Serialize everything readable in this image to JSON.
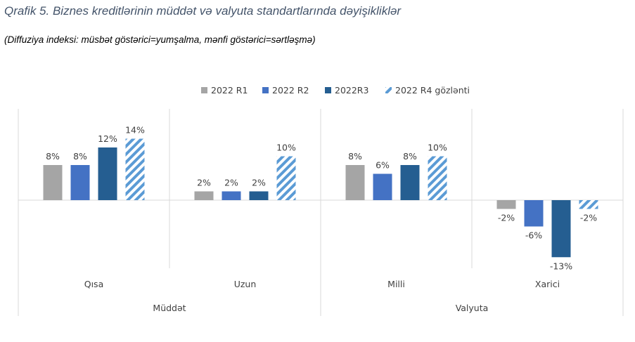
{
  "title": "Qrafik 5. Biznes kreditlərinin müddət və valyuta standartlarında dəyişikliklər",
  "subtitle": "(Diffuziya indeksi: müsbət göstərici=yumşalma, mənfi göstərici=sərtləşmə)",
  "chart_data": {
    "type": "bar",
    "title": "Qrafik 5. Biznes kreditlərinin müddət və valyuta standartlarında dəyişikliklər",
    "subtitle": "(Diffuziya indeksi: müsbət göstərici=yumşalma, mənfi göstərici=sərtləşmə)",
    "xlabel": "",
    "ylabel": "",
    "ylim": [
      -15,
      15
    ],
    "grid": false,
    "legend_position": "top",
    "categories": [
      "Qısa",
      "Uzun",
      "Milli",
      "Xarici"
    ],
    "groups": [
      {
        "label": "Müddət",
        "categories": [
          "Qısa",
          "Uzun"
        ]
      },
      {
        "label": "Valyuta",
        "categories": [
          "Milli",
          "Xarici"
        ]
      }
    ],
    "series": [
      {
        "name": "2022 R1",
        "color": "#a5a5a5",
        "pattern": "solid",
        "values": [
          8,
          2,
          8,
          -2
        ],
        "labels": [
          "8%",
          "2%",
          "8%",
          "-2%"
        ]
      },
      {
        "name": "2022 R2",
        "color": "#4472c4",
        "pattern": "solid",
        "values": [
          8,
          2,
          6,
          -6
        ],
        "labels": [
          "8%",
          "2%",
          "6%",
          "-6%"
        ]
      },
      {
        "name": "2022R3",
        "color": "#255e91",
        "pattern": "solid",
        "values": [
          12,
          2,
          8,
          -13
        ],
        "labels": [
          "12%",
          "2%",
          "8%",
          "-13%"
        ]
      },
      {
        "name": "2022 R4 gözlənti",
        "color": "#5b9bd5",
        "pattern": "diagonal-stripes",
        "values": [
          14,
          10,
          10,
          -2
        ],
        "labels": [
          "14%",
          "10%",
          "10%",
          "-2%"
        ]
      }
    ]
  }
}
